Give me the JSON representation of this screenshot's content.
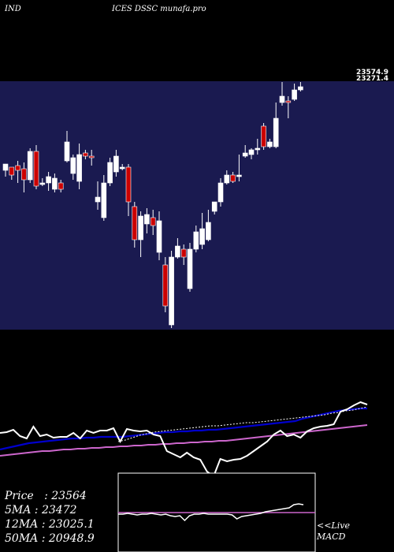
{
  "header": {
    "left": "IND",
    "center": "ICES DSSC munafa.pro"
  },
  "price_tags": [
    "23574.9",
    "23271.4"
  ],
  "stats": [
    {
      "label": "Price",
      "value": "23564"
    },
    {
      "label": "5MA",
      "value": "23472"
    },
    {
      "label": "12MA",
      "value": "23025.1"
    },
    {
      "label": "50MA",
      "value": "20948.9"
    }
  ],
  "macd_label": {
    "line1": "<<Live",
    "line2": "MACD"
  },
  "colors": {
    "up": "#ffffff",
    "down": "#cc0000",
    "panel": "#1a1a50",
    "ma_fast": "#0000cc",
    "ma_slow": "#cc66cc",
    "macd_line": "#cc66cc"
  },
  "chart_data": {
    "type": "candlestick",
    "candles": [
      [
        216,
        208,
        224,
        212
      ],
      [
        212,
        222,
        228,
        216
      ],
      [
        210,
        216,
        232,
        204
      ],
      [
        214,
        228,
        244,
        206
      ],
      [
        228,
        192,
        232,
        188
      ],
      [
        192,
        236,
        240,
        184
      ],
      [
        232,
        232,
        236,
        226
      ],
      [
        232,
        224,
        242,
        218
      ],
      [
        240,
        226,
        244,
        220
      ],
      [
        232,
        240,
        244,
        228
      ],
      [
        204,
        180,
        206,
        166
      ],
      [
        220,
        200,
        228,
        196
      ],
      [
        230,
        196,
        240,
        182
      ],
      [
        194,
        198,
        202,
        190
      ],
      [
        198,
        200,
        210,
        190
      ],
      [
        256,
        250,
        266,
        230
      ],
      [
        276,
        232,
        280,
        222
      ],
      [
        232,
        206,
        236,
        200
      ],
      [
        218,
        198,
        224,
        190
      ],
      [
        212,
        212,
        216,
        208
      ],
      [
        212,
        256,
        274,
        208
      ],
      [
        262,
        304,
        314,
        256
      ],
      [
        304,
        274,
        326,
        268
      ],
      [
        284,
        272,
        296,
        264
      ],
      [
        276,
        286,
        298,
        266
      ],
      [
        320,
        280,
        330,
        268
      ],
      [
        336,
        388,
        396,
        326
      ],
      [
        412,
        326,
        416,
        318
      ],
      [
        326,
        312,
        328,
        302
      ],
      [
        316,
        326,
        336,
        310
      ],
      [
        366,
        316,
        370,
        308
      ],
      [
        316,
        294,
        320,
        286
      ],
      [
        310,
        290,
        316,
        270
      ],
      [
        304,
        282,
        306,
        266
      ],
      [
        268,
        256,
        272,
        256
      ],
      [
        256,
        232,
        262,
        226
      ],
      [
        232,
        222,
        234,
        216
      ],
      [
        222,
        230,
        232,
        218
      ],
      [
        222,
        222,
        230,
        196
      ],
      [
        198,
        194,
        200,
        184
      ],
      [
        196,
        190,
        202,
        188
      ],
      [
        190,
        188,
        196,
        176
      ],
      [
        160,
        186,
        190,
        156
      ],
      [
        186,
        180,
        188,
        176
      ],
      [
        186,
        150,
        188,
        130
      ],
      [
        130,
        122,
        134,
        104
      ],
      [
        128,
        130,
        150,
        122
      ],
      [
        126,
        114,
        128,
        106
      ],
      [
        114,
        110,
        116,
        104
      ]
    ],
    "ma_fast": [
      570,
      568,
      566,
      564,
      562,
      561,
      560,
      559,
      558,
      557,
      556,
      556,
      555,
      555,
      554,
      554,
      554,
      554,
      553,
      552,
      551,
      550,
      549,
      548,
      548,
      547,
      547,
      546,
      546,
      545,
      545,
      544,
      543,
      542,
      541,
      540,
      539,
      538,
      537,
      536,
      535,
      534,
      531,
      529,
      527,
      525,
      523,
      521,
      520,
      519,
      518,
      518
    ],
    "ma_slow": [
      578,
      577,
      576,
      575,
      574,
      573,
      572,
      572,
      571,
      570,
      570,
      569,
      569,
      568,
      568,
      567,
      567,
      566,
      566,
      565,
      565,
      564,
      564,
      563,
      563,
      562,
      562,
      561,
      561,
      560,
      560,
      559,
      559,
      558,
      557,
      556,
      555,
      554,
      553,
      552,
      551,
      550,
      549,
      548,
      547,
      546,
      545,
      544,
      543,
      542,
      541,
      540,
      539
    ],
    "ma_dotted": [
      560,
      558,
      555,
      552,
      550,
      548,
      547,
      546,
      545,
      544,
      543,
      542,
      541,
      540,
      540,
      539,
      538,
      537,
      536,
      536,
      535,
      534,
      533,
      532,
      531,
      530,
      529,
      528,
      527,
      526,
      524,
      523,
      521,
      520,
      518,
      516
    ],
    "macd": [
      549,
      548,
      545,
      553,
      556,
      541,
      553,
      551,
      555,
      554,
      554,
      549,
      556,
      546,
      549,
      546,
      546,
      543,
      560,
      544,
      546,
      547,
      546,
      551,
      553,
      572,
      576,
      580,
      574,
      580,
      583,
      598,
      604,
      582,
      585,
      583,
      582,
      578,
      572,
      566,
      560,
      551,
      546,
      553,
      551,
      555,
      547,
      543,
      541,
      540,
      538,
      522,
      519,
      514,
      510,
      513
    ]
  }
}
